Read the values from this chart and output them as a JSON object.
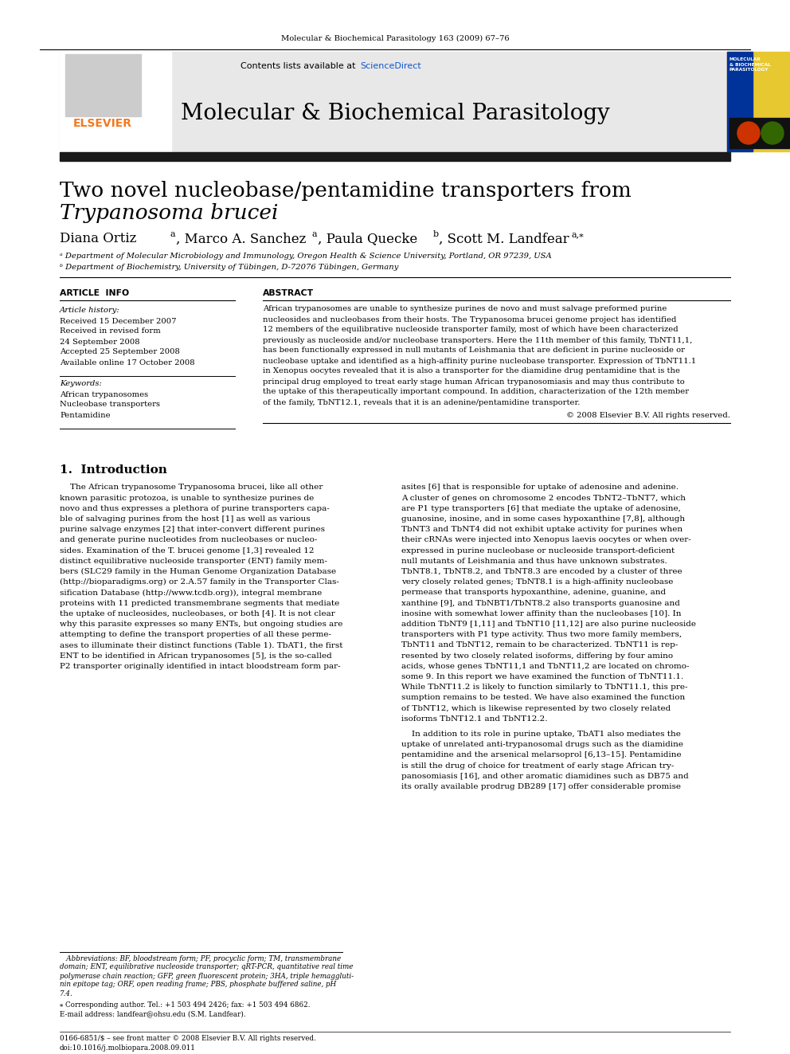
{
  "journal_header": "Molecular & Biochemical Parasitology 163 (2009) 67–76",
  "journal_name": "Molecular & Biochemical Parasitology",
  "sciencedirect_color": "#1155cc",
  "elsevier_color": "#f47920",
  "dark_bar_color": "#1a1a1a",
  "header_bg": "#e8e8e8",
  "article_info_title": "ARTICLE  INFO",
  "abstract_title": "ABSTRACT",
  "article_history": "Article history:",
  "received": "Received 15 December 2007",
  "revised": "Received in revised form",
  "revised2": "24 September 2008",
  "accepted": "Accepted 25 September 2008",
  "online": "Available online 17 October 2008",
  "keywords_title": "Keywords:",
  "keywords": [
    "African trypanosomes",
    "Nucleobase transporters",
    "Pentamidine"
  ],
  "copyright": "© 2008 Elsevier B.V. All rights reserved.",
  "intro_title": "1.  Introduction",
  "affil_a": "ᵃ Department of Molecular Microbiology and Immunology, Oregon Health & Science University, Portland, OR 97239, USA",
  "affil_b": "ᵇ Department of Biochemistry, University of Tübingen, D-72076 Tübingen, Germany",
  "footnote_abbrev1": "   Abbreviations: BF, bloodstream form; PF, procyclic form; TM, transmembrane",
  "footnote_abbrev2": "domain; ENT, equilibrative nucleoside transporter; qRT-PCR, quantitative real time",
  "footnote_abbrev3": "polymerase chain reaction; GFP, green fluorescent protein; 3HA, triple hemaggluti-",
  "footnote_abbrev4": "nin epitope tag; ORF, open reading frame; PBS, phosphate buffered saline, pH",
  "footnote_abbrev5": "7.4.",
  "footnote_corresponding": "⁎ Corresponding author. Tel.: +1 503 494 2426; fax: +1 503 494 6862.",
  "footnote_email": "E-mail address: landfear@ohsu.edu (S.M. Landfear).",
  "footnote_bottom1": "0166-6851/$ – see front matter © 2008 Elsevier B.V. All rights reserved.",
  "footnote_bottom2": "doi:10.1016/j.molbiopara.2008.09.011",
  "link_color": "#1155cc",
  "abstract_lines": [
    "African trypanosomes are unable to synthesize purines de novo and must salvage preformed purine",
    "nucleosides and nucleobases from their hosts. The Trypanosoma brucei genome project has identified",
    "12 members of the equilibrative nucleoside transporter family, most of which have been characterized",
    "previously as nucleoside and/or nucleobase transporters. Here the 11th member of this family, TbNT11,1,",
    "has been functionally expressed in null mutants of Leishmania that are deficient in purine nucleoside or",
    "nucleobase uptake and identified as a high-affinity purine nucleobase transporter. Expression of TbNT11.1",
    "in Xenopus oocytes revealed that it is also a transporter for the diamidine drug pentamidine that is the",
    "principal drug employed to treat early stage human African trypanosomiasis and may thus contribute to",
    "the uptake of this therapeutically important compound. In addition, characterization of the 12th member",
    "of the family, TbNT12.1, reveals that it is an adenine/pentamidine transporter."
  ],
  "intro1_lines": [
    "    The African trypanosome Trypanosoma brucei, like all other",
    "known parasitic protozoa, is unable to synthesize purines de",
    "novo and thus expresses a plethora of purine transporters capa-",
    "ble of salvaging purines from the host [1] as well as various",
    "purine salvage enzymes [2] that inter-convert different purines",
    "and generate purine nucleotides from nucleobases or nucleo-",
    "sides. Examination of the T. brucei genome [1,3] revealed 12",
    "distinct equilibrative nucleoside transporter (ENT) family mem-",
    "bers (SLC29 family in the Human Genome Organization Database",
    "(http://bioparadigms.org) or 2.A.57 family in the Transporter Clas-",
    "sification Database (http://www.tcdb.org)), integral membrane",
    "proteins with 11 predicted transmembrane segments that mediate",
    "the uptake of nucleosides, nucleobases, or both [4]. It is not clear",
    "why this parasite expresses so many ENTs, but ongoing studies are",
    "attempting to define the transport properties of all these perme-",
    "ases to illuminate their distinct functions (Table 1). TbAT1, the first",
    "ENT to be identified in African trypanosomes [5], is the so-called",
    "P2 transporter originally identified in intact bloodstream form par-"
  ],
  "intro2_lines": [
    "asites [6] that is responsible for uptake of adenosine and adenine.",
    "A cluster of genes on chromosome 2 encodes TbNT2–TbNT7, which",
    "are P1 type transporters [6] that mediate the uptake of adenosine,",
    "guanosine, inosine, and in some cases hypoxanthine [7,8], although",
    "TbNT3 and TbNT4 did not exhibit uptake activity for purines when",
    "their cRNAs were injected into Xenopus laevis oocytes or when over-",
    "expressed in purine nucleobase or nucleoside transport-deficient",
    "null mutants of Leishmania and thus have unknown substrates.",
    "TbNT8.1, TbNT8.2, and TbNT8.3 are encoded by a cluster of three",
    "very closely related genes; TbNT8.1 is a high-affinity nucleobase",
    "permease that transports hypoxanthine, adenine, guanine, and",
    "xanthine [9], and TbNBT1/TbNT8.2 also transports guanosine and",
    "inosine with somewhat lower affinity than the nucleobases [10]. In",
    "addition TbNT9 [1,11] and TbNT10 [11,12] are also purine nucleoside",
    "transporters with P1 type activity. Thus two more family members,",
    "TbNT11 and TbNT12, remain to be characterized. TbNT11 is rep-",
    "resented by two closely related isoforms, differing by four amino",
    "acids, whose genes TbNT11,1 and TbNT11,2 are located on chromo-",
    "some 9. In this report we have examined the function of TbNT11.1.",
    "While TbNT11.2 is likely to function similarly to TbNT11.1, this pre-",
    "sumption remains to be tested. We have also examined the function",
    "of TbNT12, which is likewise represented by two closely related",
    "isoforms TbNT12.1 and TbNT12.2."
  ],
  "intro2b_lines": [
    "    In addition to its role in purine uptake, TbAT1 also mediates the",
    "uptake of unrelated anti-trypanosomal drugs such as the diamidine",
    "pentamidine and the arsenical melarsoprol [6,13–15]. Pentamidine",
    "is still the drug of choice for treatment of early stage African try-",
    "panosomiasis [16], and other aromatic diamidines such as DB75 and",
    "its orally available prodrug DB289 [17] offer considerable promise"
  ]
}
